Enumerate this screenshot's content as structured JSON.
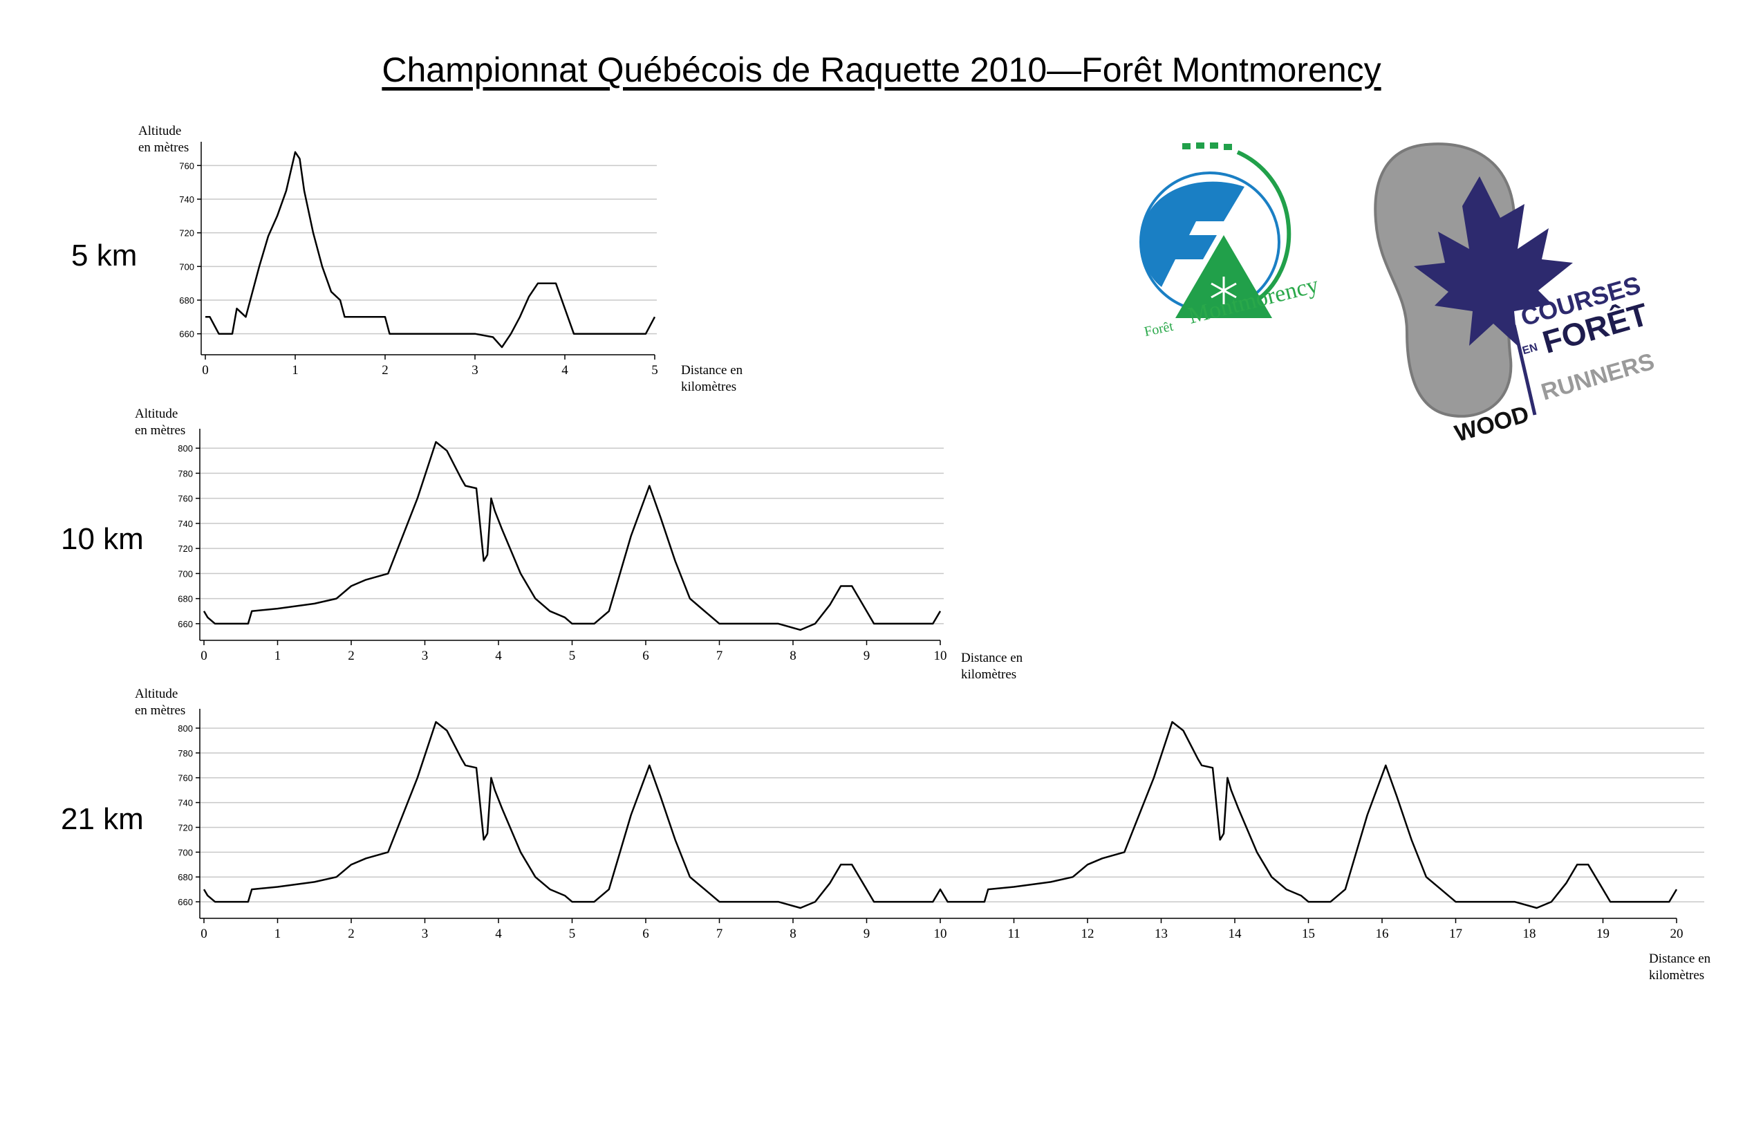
{
  "title": "Championnat Québécois de Raquette 2010—Forêt  Montmorency",
  "logos": {
    "foret": {
      "line1": "Forêt",
      "line2": "Montmorency",
      "icon": "snowflake-icon",
      "colors": {
        "blue": "#1a7fc4",
        "green": "#21a04a"
      }
    },
    "courses": {
      "word1": "COURSES",
      "word2": "EN",
      "word3": "FORÊT",
      "word4": "WOOD",
      "word5": "RUNNERS",
      "icons": [
        "shoe-print-icon",
        "maple-leaf-icon"
      ],
      "colors": {
        "leaf": "#2d2a6e",
        "shoe": "#9a9a9a",
        "text": "#2d2a6e"
      }
    }
  },
  "chart_data": [
    {
      "type": "line",
      "race_label": "5 km",
      "ylabel_line1": "Altitude",
      "ylabel_line2": "en mètres",
      "xlabel_line1": "Distance en",
      "xlabel_line2": "kilomètres",
      "xlim": [
        0,
        5
      ],
      "ylim": [
        650,
        770
      ],
      "yticks": [
        660,
        680,
        700,
        720,
        740,
        760
      ],
      "xticks": [
        0,
        1,
        2,
        3,
        4,
        5
      ],
      "grid": true,
      "x": [
        0,
        0.05,
        0.1,
        0.15,
        0.3,
        0.35,
        0.45,
        0.6,
        0.7,
        0.8,
        0.9,
        1.0,
        1.05,
        1.1,
        1.2,
        1.3,
        1.4,
        1.5,
        1.55,
        1.65,
        2.0,
        2.05,
        2.5,
        3.0,
        3.2,
        3.3,
        3.4,
        3.5,
        3.6,
        3.7,
        3.9,
        4.0,
        4.1,
        4.5,
        4.9,
        5.0
      ],
      "y": [
        670,
        670,
        665,
        660,
        660,
        675,
        670,
        700,
        718,
        730,
        745,
        768,
        764,
        745,
        720,
        700,
        685,
        680,
        670,
        670,
        670,
        660,
        660,
        660,
        658,
        652,
        660,
        670,
        682,
        690,
        690,
        675,
        660,
        660,
        660,
        670
      ]
    },
    {
      "type": "line",
      "race_label": "10 km",
      "ylabel_line1": "Altitude",
      "ylabel_line2": "en mètres",
      "xlabel_line1": "Distance en",
      "xlabel_line2": "kilomètres",
      "xlim": [
        0,
        10
      ],
      "ylim": [
        650,
        810
      ],
      "yticks": [
        660,
        680,
        700,
        720,
        740,
        760,
        780,
        800
      ],
      "xticks": [
        0,
        1,
        2,
        3,
        4,
        5,
        6,
        7,
        8,
        9,
        10
      ],
      "grid": true,
      "x": [
        0,
        0.05,
        0.15,
        0.6,
        0.65,
        1.0,
        1.5,
        1.8,
        2.0,
        2.2,
        2.5,
        2.6,
        2.9,
        3.15,
        3.3,
        3.5,
        3.55,
        3.7,
        3.8,
        3.85,
        3.9,
        3.95,
        4.05,
        4.3,
        4.5,
        4.7,
        4.9,
        5.0,
        5.3,
        5.5,
        5.8,
        6.05,
        6.2,
        6.4,
        6.6,
        6.8,
        7.0,
        7.3,
        7.8,
        8.1,
        8.3,
        8.5,
        8.65,
        8.8,
        8.95,
        9.1,
        9.5,
        9.9,
        10.0
      ],
      "y": [
        670,
        665,
        660,
        660,
        670,
        672,
        676,
        680,
        690,
        695,
        700,
        715,
        760,
        805,
        798,
        775,
        770,
        768,
        710,
        715,
        760,
        750,
        735,
        700,
        680,
        670,
        665,
        660,
        660,
        670,
        730,
        770,
        745,
        710,
        680,
        670,
        660,
        660,
        660,
        655,
        660,
        675,
        690,
        690,
        675,
        660,
        660,
        660,
        670
      ]
    },
    {
      "type": "line",
      "race_label": "21 km",
      "ylabel_line1": "Altitude",
      "ylabel_line2": "en mètres",
      "xlabel_line1": "Distance en",
      "xlabel_line2": "kilomètres",
      "xlim": [
        0,
        20
      ],
      "ylim": [
        650,
        810
      ],
      "yticks": [
        660,
        680,
        700,
        720,
        740,
        760,
        780,
        800
      ],
      "xticks": [
        0,
        1,
        2,
        3,
        4,
        5,
        6,
        7,
        8,
        9,
        10,
        11,
        12,
        13,
        14,
        15,
        16,
        17,
        18,
        19,
        20
      ],
      "grid": true,
      "x": [
        0,
        0.05,
        0.15,
        0.6,
        0.65,
        1.0,
        1.5,
        1.8,
        2.0,
        2.2,
        2.5,
        2.6,
        2.9,
        3.15,
        3.3,
        3.5,
        3.55,
        3.7,
        3.8,
        3.85,
        3.9,
        3.95,
        4.05,
        4.3,
        4.5,
        4.7,
        4.9,
        5.0,
        5.3,
        5.5,
        5.8,
        6.05,
        6.2,
        6.4,
        6.6,
        6.8,
        7.0,
        7.3,
        7.8,
        8.1,
        8.3,
        8.5,
        8.65,
        8.8,
        8.95,
        9.1,
        9.5,
        9.9,
        10.0,
        10.1,
        10.2,
        10.6,
        10.65,
        11.0,
        11.5,
        11.8,
        12.0,
        12.2,
        12.5,
        12.6,
        12.9,
        13.15,
        13.3,
        13.5,
        13.55,
        13.7,
        13.8,
        13.85,
        13.9,
        13.95,
        14.05,
        14.3,
        14.5,
        14.7,
        14.9,
        15.0,
        15.3,
        15.5,
        15.8,
        16.05,
        16.2,
        16.4,
        16.6,
        16.8,
        17.0,
        17.3,
        17.8,
        18.1,
        18.3,
        18.5,
        18.65,
        18.8,
        18.95,
        19.1,
        19.5,
        19.9,
        20.0
      ],
      "y": [
        670,
        665,
        660,
        660,
        670,
        672,
        676,
        680,
        690,
        695,
        700,
        715,
        760,
        805,
        798,
        775,
        770,
        768,
        710,
        715,
        760,
        750,
        735,
        700,
        680,
        670,
        665,
        660,
        660,
        670,
        730,
        770,
        745,
        710,
        680,
        670,
        660,
        660,
        660,
        655,
        660,
        675,
        690,
        690,
        675,
        660,
        660,
        660,
        670,
        660,
        660,
        660,
        670,
        672,
        676,
        680,
        690,
        695,
        700,
        715,
        760,
        805,
        798,
        775,
        770,
        768,
        710,
        715,
        760,
        750,
        735,
        700,
        680,
        670,
        665,
        660,
        660,
        670,
        730,
        770,
        745,
        710,
        680,
        670,
        660,
        660,
        660,
        655,
        660,
        675,
        690,
        690,
        675,
        660,
        660,
        660,
        670
      ]
    }
  ]
}
